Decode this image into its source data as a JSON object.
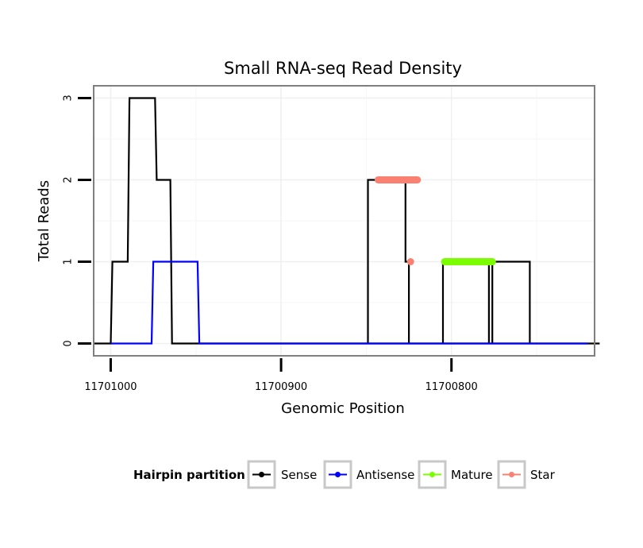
{
  "chart_data": {
    "type": "line",
    "title": "Small RNA-seq Read Density",
    "xlabel": "Genomic Position",
    "ylabel": "Total Reads",
    "x_reversed": true,
    "xlim": [
      11701010,
      11700716
    ],
    "ylim": [
      -0.15,
      3.15
    ],
    "x_ticks": [
      {
        "value": 11701000,
        "label": "11701000"
      },
      {
        "value": 11700900,
        "label": "11700900"
      },
      {
        "value": 11700800,
        "label": "11700800"
      }
    ],
    "y_ticks": [
      {
        "value": 0,
        "label": "0"
      },
      {
        "value": 1,
        "label": "1"
      },
      {
        "value": 2,
        "label": "2"
      },
      {
        "value": 3,
        "label": "3"
      }
    ],
    "grid": true,
    "series": [
      {
        "name": "Sense",
        "color": "#000000",
        "x": [
          11701010,
          11701000,
          11700999,
          11700990,
          11700989,
          11700974,
          11700973,
          11700965,
          11700964,
          11700961,
          11700713,
          11700713,
          11700849,
          11700849,
          11700827,
          11700827,
          11700825,
          11700825,
          11700805,
          11700805,
          11700778,
          11700778,
          11700776,
          11700776,
          11700754,
          11700754,
          11700730
        ],
        "y": [
          0,
          0,
          1,
          1,
          3,
          3,
          2,
          2,
          0,
          0,
          0,
          0,
          0,
          2,
          2,
          1,
          1,
          0,
          0,
          1,
          1,
          0,
          0,
          1,
          1,
          0,
          0
        ]
      },
      {
        "name": "Antisense",
        "color": "#0000ff",
        "x": [
          11701000,
          11700976,
          11700975,
          11700949,
          11700948,
          11700720
        ],
        "y": [
          0,
          0,
          1,
          1,
          0,
          0
        ]
      },
      {
        "name": "Mature",
        "color": "#7cfc00",
        "x": [
          11700804,
          11700776
        ],
        "y": [
          1,
          1
        ]
      },
      {
        "name": "Star",
        "color": "#fa8072",
        "x": [
          11700843,
          11700820
        ],
        "y": [
          2,
          2
        ]
      },
      {
        "name": "Star",
        "color": "#fa8072",
        "x": [
          11700824
        ],
        "y": [
          1
        ]
      }
    ],
    "legend": {
      "title": "Hairpin partition",
      "position": "bottom",
      "entries": [
        {
          "label": "Sense",
          "color": "#000000"
        },
        {
          "label": "Antisense",
          "color": "#0000ff"
        },
        {
          "label": "Mature",
          "color": "#7cfc00"
        },
        {
          "label": "Star",
          "color": "#fa8072"
        }
      ]
    }
  }
}
